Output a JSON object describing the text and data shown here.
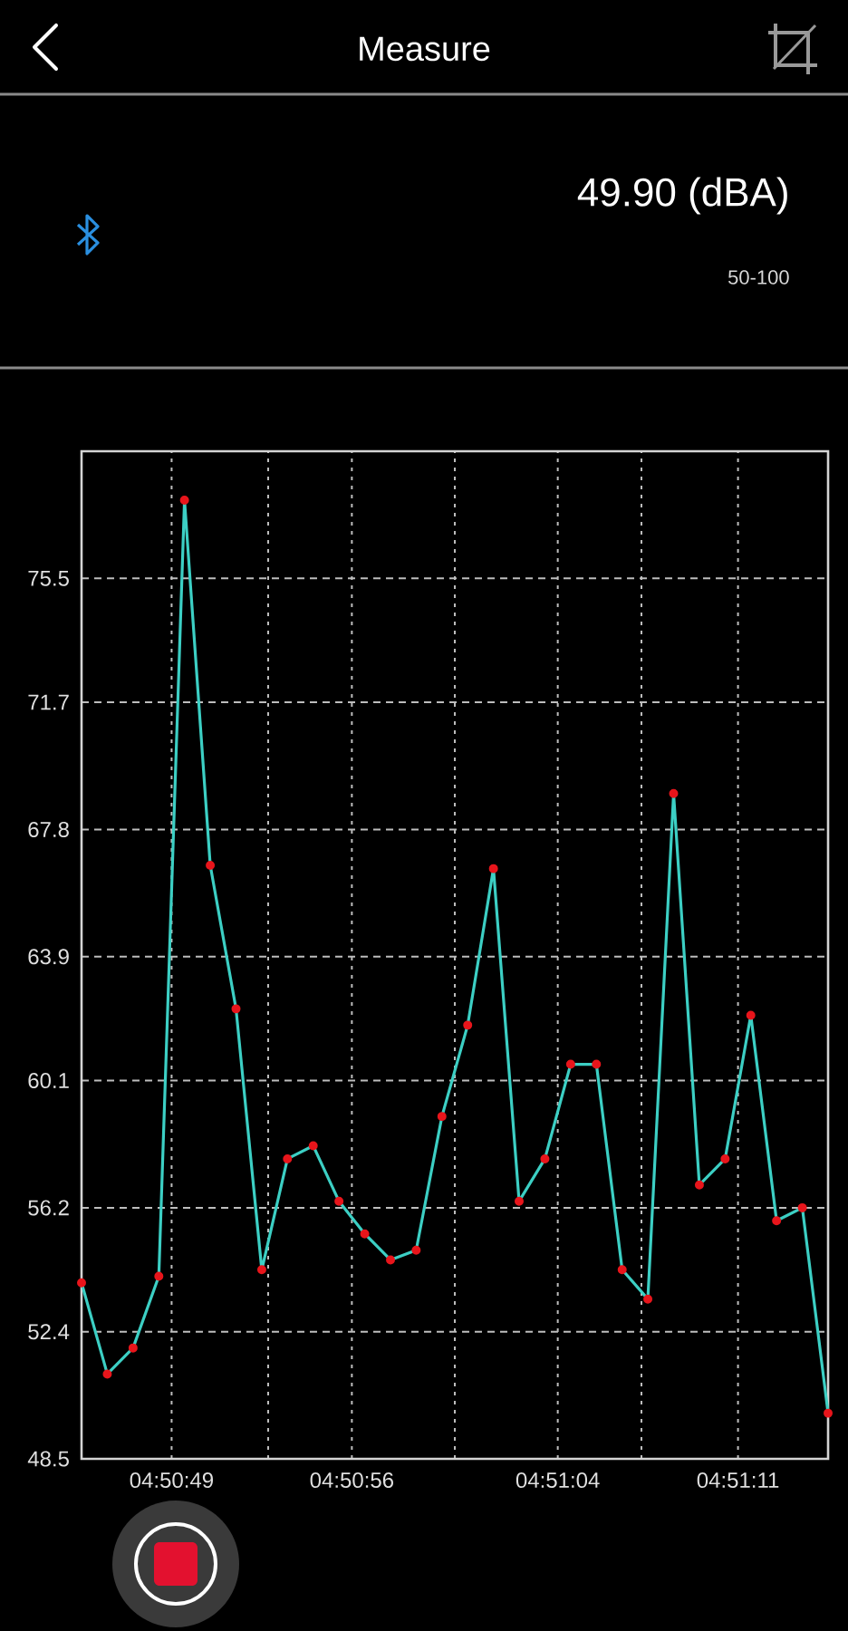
{
  "chart_data": {
    "type": "line",
    "title": "Measure",
    "annotations": [
      "49.90 (dBA)",
      "50-100"
    ],
    "x": [
      4.845972,
      4.84625,
      4.846528,
      4.846806,
      4.847083,
      4.847361,
      4.847639,
      4.847917,
      4.848194,
      4.848472,
      4.84875,
      4.849028,
      4.849306,
      4.849583,
      4.849861,
      4.850139,
      4.850417,
      4.850694,
      4.850972,
      4.85125,
      4.851528,
      4.851806,
      4.852083,
      4.852361,
      4.852639,
      4.852917,
      4.853194,
      4.853472,
      4.85375,
      4.854028
    ],
    "values": [
      53.9,
      51.1,
      51.9,
      54.1,
      77.9,
      66.7,
      62.3,
      54.3,
      57.7,
      58.1,
      56.4,
      55.4,
      54.6,
      54.9,
      59.0,
      61.8,
      66.6,
      56.4,
      57.7,
      60.6,
      60.6,
      54.3,
      53.4,
      68.9,
      56.9,
      57.7,
      62.1,
      55.8,
      56.2,
      49.9
    ],
    "color": "#3ccfc4",
    "xlim": [
      4.845972,
      4.854028
    ],
    "xticks": [
      {
        "value": 4.846944,
        "label": "04:50:49"
      },
      {
        "value": 4.847986,
        "label": null
      },
      {
        "value": 4.848889,
        "label": "04:50:56"
      },
      {
        "value": 4.85,
        "label": null
      },
      {
        "value": 4.851111,
        "label": "04:51:04"
      },
      {
        "value": 4.852014,
        "label": null
      },
      {
        "value": 4.853056,
        "label": "04:51:11"
      }
    ],
    "ylim": [
      48.5,
      79.4
    ],
    "yticks": [
      48.5,
      52.4,
      56.2,
      60.1,
      63.9,
      67.8,
      71.7,
      75.5
    ],
    "grid": true,
    "marker": "circle",
    "line_style": "solid"
  }
}
